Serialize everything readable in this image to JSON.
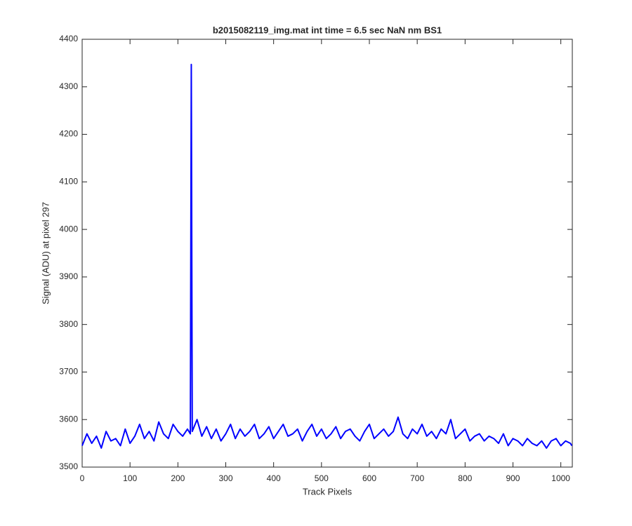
{
  "chart_data": {
    "type": "line",
    "title": "b2015082119_img.mat int time = 6.5 sec  NaN nm BS1",
    "x_label": "Track Pixels",
    "y_label": "Signal (ADU) at pixel 297",
    "x": [
      0,
      10,
      20,
      30,
      40,
      50,
      60,
      70,
      80,
      90,
      100,
      110,
      120,
      130,
      140,
      150,
      160,
      170,
      180,
      190,
      200,
      210,
      220,
      226,
      228,
      230,
      240,
      250,
      260,
      270,
      280,
      290,
      300,
      310,
      320,
      330,
      340,
      350,
      360,
      370,
      380,
      390,
      400,
      410,
      420,
      430,
      440,
      450,
      460,
      470,
      480,
      490,
      500,
      510,
      520,
      530,
      540,
      550,
      560,
      570,
      580,
      590,
      600,
      610,
      620,
      630,
      640,
      650,
      660,
      670,
      680,
      690,
      700,
      710,
      720,
      730,
      740,
      750,
      760,
      770,
      780,
      790,
      800,
      810,
      820,
      830,
      840,
      850,
      860,
      870,
      880,
      890,
      900,
      910,
      920,
      930,
      940,
      950,
      960,
      970,
      980,
      990,
      1000,
      1010,
      1020,
      1023
    ],
    "series": [
      {
        "color": "#0000ff",
        "values": [
          3545,
          3570,
          3550,
          3565,
          3540,
          3575,
          3555,
          3560,
          3545,
          3580,
          3550,
          3565,
          3590,
          3560,
          3575,
          3555,
          3595,
          3570,
          3560,
          3590,
          3575,
          3565,
          3580,
          3570,
          4347,
          3575,
          3600,
          3565,
          3585,
          3560,
          3580,
          3555,
          3570,
          3590,
          3560,
          3580,
          3565,
          3575,
          3590,
          3560,
          3570,
          3585,
          3560,
          3575,
          3590,
          3565,
          3570,
          3580,
          3555,
          3575,
          3590,
          3565,
          3580,
          3560,
          3570,
          3585,
          3560,
          3575,
          3580,
          3565,
          3555,
          3575,
          3590,
          3560,
          3570,
          3580,
          3565,
          3575,
          3605,
          3570,
          3560,
          3580,
          3570,
          3590,
          3565,
          3575,
          3560,
          3580,
          3570,
          3600,
          3560,
          3570,
          3580,
          3555,
          3565,
          3570,
          3555,
          3565,
          3560,
          3550,
          3570,
          3545,
          3560,
          3555,
          3545,
          3560,
          3550,
          3545,
          3555,
          3540,
          3555,
          3560,
          3545,
          3555,
          3550,
          3545
        ]
      }
    ],
    "xlim": [
      0,
      1024
    ],
    "xticks": [
      0,
      100,
      200,
      300,
      400,
      500,
      600,
      700,
      800,
      900,
      1000
    ],
    "ylim": [
      3500,
      4400
    ],
    "yticks": [
      3500,
      3600,
      3700,
      3800,
      3900,
      4000,
      4100,
      4200,
      4300,
      4400
    ]
  }
}
